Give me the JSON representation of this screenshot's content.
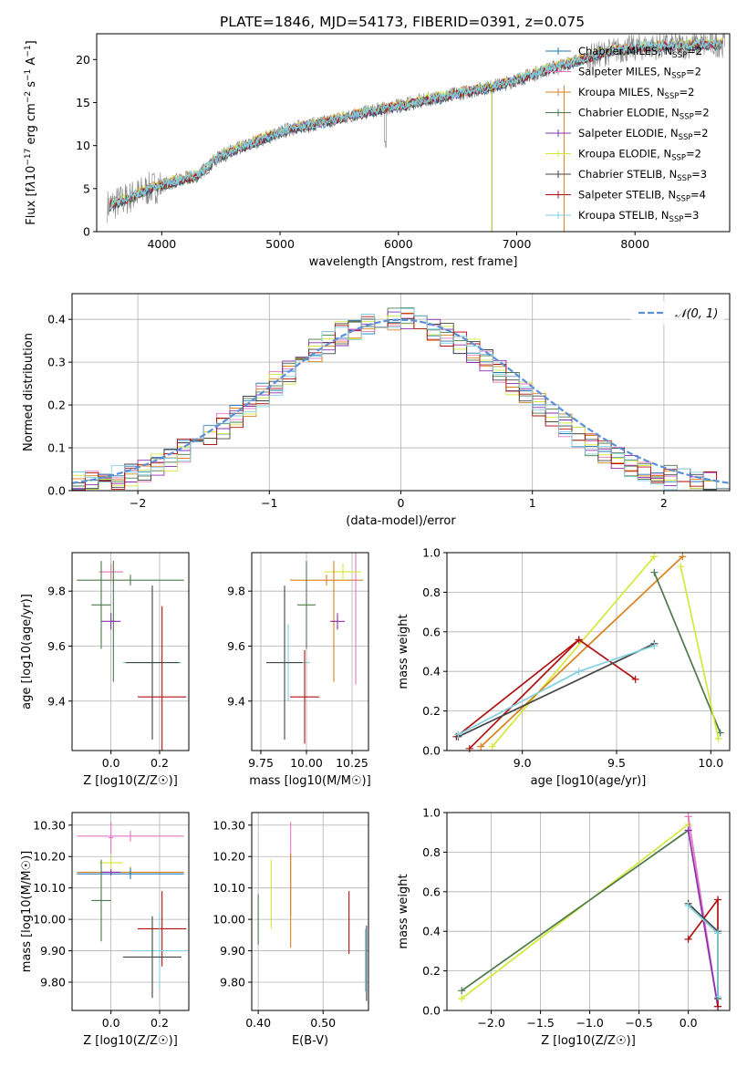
{
  "title": "PLATE=1846, MJD=54173, FIBERID=0391, z=0.075",
  "models": [
    {
      "name": "Chabrier MILES, N<sub>SSP</sub>=2",
      "label": "Chabrier MILES, N",
      "sub": "SSP",
      "tail": "=2",
      "color": "#1f77b4"
    },
    {
      "name": "Salpeter MILES",
      "label": "Salpeter MILES, N",
      "sub": "SSP",
      "tail": "=2",
      "color": "#e377c2"
    },
    {
      "name": "Kroupa MILES",
      "label": "Kroupa MILES, N",
      "sub": "SSP",
      "tail": "=2",
      "color": "#d9821e"
    },
    {
      "name": "Chabrier ELODIE",
      "label": "Chabrier ELODIE, N",
      "sub": "SSP",
      "tail": "=2",
      "color": "#4d7a4d"
    },
    {
      "name": "Salpeter ELODIE",
      "label": "Salpeter ELODIE, N",
      "sub": "SSP",
      "tail": "=2",
      "color": "#8b2fb0"
    },
    {
      "name": "Kroupa ELODIE",
      "label": "Kroupa ELODIE, N",
      "sub": "SSP",
      "tail": "=2",
      "color": "#d4e83a"
    },
    {
      "name": "Chabrier STELIB",
      "label": "Chabrier STELIB, N",
      "sub": "SSP",
      "tail": "=3",
      "color": "#444444"
    },
    {
      "name": "Salpeter STELIB",
      "label": "Salpeter STELIB, N",
      "sub": "SSP",
      "tail": "=4",
      "color": "#b01010"
    },
    {
      "name": "Kroupa STELIB",
      "label": "Kroupa STELIB, N",
      "sub": "SSP",
      "tail": "=3",
      "color": "#80d0e0"
    }
  ],
  "chart_data": [
    {
      "id": "spectrum",
      "type": "line",
      "xlabel": "wavelength [Angstrom, rest frame]",
      "ylabel_parts": [
        "Flux [f",
        "λ",
        "10",
        "−17",
        " erg cm",
        "−2",
        " s",
        "−1",
        " A",
        "−1",
        "]"
      ],
      "xlim": [
        3450,
        8800
      ],
      "ylim": [
        0,
        23
      ],
      "xticks": [
        4000,
        5000,
        6000,
        7000,
        8000
      ],
      "yticks": [
        0,
        5,
        10,
        15,
        20
      ],
      "trend": {
        "x": [
          3550,
          3700,
          3900,
          4100,
          4300,
          4500,
          4800,
          5100,
          5400,
          5700,
          6000,
          6300,
          6600,
          6900,
          7200,
          7500,
          7800,
          8100,
          8400,
          8700
        ],
        "y": [
          3,
          3.8,
          5,
          5.8,
          6.5,
          8.8,
          10.5,
          12,
          12.8,
          13.8,
          14.6,
          15.5,
          16.3,
          17.2,
          18.6,
          19.8,
          21,
          21.5,
          21.6,
          21.8
        ]
      },
      "data_color": "#808080",
      "spike_x": [
        6790,
        7400
      ]
    },
    {
      "id": "residuals",
      "type": "step",
      "xlabel": "(data-model)/error",
      "ylabel": "Normed distribution",
      "xlim": [
        -2.5,
        2.5
      ],
      "ylim": [
        0,
        0.46
      ],
      "xticks": [
        -2,
        -1,
        0,
        1,
        2
      ],
      "yticks": [
        0,
        0.1,
        0.2,
        0.3,
        0.4
      ],
      "legend": "N(0,1)",
      "gauss_color": "#5b8fd9"
    },
    {
      "id": "age_vs_Z",
      "type": "scatter",
      "xlabel": "Z [log10(Z/Z☉)]",
      "ylabel": "age [log10(age/yr)]",
      "xlim": [
        -0.16,
        0.32
      ],
      "ylim": [
        9.22,
        9.94
      ],
      "xticks": [
        0.0,
        0.2
      ],
      "yticks": [
        9.4,
        9.6,
        9.8
      ],
      "points": [
        {
          "m": 3,
          "x": 0.08,
          "y": 9.84,
          "ex": 0.22,
          "ey": 0.0
        },
        {
          "m": 5,
          "x": 0.0,
          "y": 9.87,
          "ex": 0.05,
          "ey": 0.03
        },
        {
          "m": 1,
          "x": 0.0,
          "y": 9.87,
          "ex": 0.05,
          "ey": 0.03
        },
        {
          "m": 3,
          "x": 0.01,
          "y": 9.69,
          "ex": 0.01,
          "ey": 0.22
        },
        {
          "m": 3,
          "x": -0.04,
          "y": 9.75,
          "ex": 0.04,
          "ey": 0.16
        },
        {
          "m": 4,
          "x": 0.0,
          "y": 9.69,
          "ex": 0.04,
          "ey": 0.03
        },
        {
          "m": 8,
          "x": 0.17,
          "y": 9.54,
          "ex": 0.12,
          "ey": 0.28
        },
        {
          "m": 6,
          "x": 0.17,
          "y": 9.54,
          "ex": 0.11,
          "ey": 0.28
        },
        {
          "m": 7,
          "x": 0.21,
          "y": 9.415,
          "ex": 0.1,
          "ey": 0.33
        }
      ]
    },
    {
      "id": "age_vs_mass",
      "type": "scatter",
      "xlabel": "mass [log10(M/M☉)]",
      "ylabel": "",
      "xlim": [
        9.7,
        10.34
      ],
      "ylim": [
        9.22,
        9.94
      ],
      "xticks": [
        9.75,
        10.0,
        10.25
      ],
      "yticks": [
        9.4,
        9.6,
        9.8
      ],
      "points": [
        {
          "m": 2,
          "x": 10.11,
          "y": 9.84,
          "ex": 0.2,
          "ey": 0.0
        },
        {
          "m": 1,
          "x": 10.27,
          "y": 9.84,
          "ex": 0.01,
          "ey": 0.38
        },
        {
          "m": 5,
          "x": 10.2,
          "y": 9.87,
          "ex": 0.1,
          "ey": 0.03
        },
        {
          "m": 2,
          "x": 10.15,
          "y": 9.69,
          "ex": 0.01,
          "ey": 0.22
        },
        {
          "m": 3,
          "x": 10.0,
          "y": 9.75,
          "ex": 0.05,
          "ey": 0.16
        },
        {
          "m": 4,
          "x": 10.17,
          "y": 9.69,
          "ex": 0.04,
          "ey": 0.03
        },
        {
          "m": 8,
          "x": 9.9,
          "y": 9.54,
          "ex": 0.12,
          "ey": 0.14
        },
        {
          "m": 6,
          "x": 9.88,
          "y": 9.54,
          "ex": 0.1,
          "ey": 0.28
        },
        {
          "m": 7,
          "x": 9.99,
          "y": 9.415,
          "ex": 0.08,
          "ey": 0.17
        }
      ]
    },
    {
      "id": "weight_vs_age",
      "type": "line",
      "xlabel": "age [log10(age/yr)]",
      "ylabel": "mass weight",
      "xlim": [
        8.6,
        10.1
      ],
      "ylim": [
        0,
        1
      ],
      "xticks": [
        9.0,
        9.5,
        10.0
      ],
      "yticks": [
        0,
        0.2,
        0.4,
        0.6,
        0.8,
        1.0
      ],
      "series": [
        {
          "m": 5,
          "x": [
            8.84,
            9.7
          ],
          "y": [
            0.02,
            0.98
          ]
        },
        {
          "m": 2,
          "x": [
            8.78,
            9.85
          ],
          "y": [
            0.02,
            0.98
          ]
        },
        {
          "m": 7,
          "x": [
            8.65,
            9.3,
            9.6
          ],
          "y": [
            0.07,
            0.56,
            0.36
          ]
        },
        {
          "m": 7,
          "x": [
            8.72,
            9.3
          ],
          "y": [
            0.01,
            0.56
          ]
        },
        {
          "m": 6,
          "x": [
            8.66,
            9.7
          ],
          "y": [
            0.07,
            0.54
          ]
        },
        {
          "m": 3,
          "x": [
            9.7,
            10.05
          ],
          "y": [
            0.9,
            0.09
          ]
        },
        {
          "m": 5,
          "x": [
            9.84,
            10.04
          ],
          "y": [
            0.93,
            0.06
          ]
        },
        {
          "m": 8,
          "x": [
            8.66,
            9.3,
            9.7
          ],
          "y": [
            0.08,
            0.4,
            0.53
          ]
        }
      ]
    },
    {
      "id": "mass_vs_Z",
      "type": "scatter",
      "xlabel": "Z [log10(Z/Z☉)]",
      "ylabel": "mass [log10(M/M☉)]",
      "xlim": [
        -0.16,
        0.32
      ],
      "ylim": [
        9.71,
        10.34
      ],
      "xticks": [
        0.0,
        0.2
      ],
      "yticks": [
        9.8,
        9.9,
        10.0,
        10.1,
        10.2,
        10.3
      ],
      "points": [
        {
          "m": 1,
          "x": 0.08,
          "y": 10.265,
          "ex": 0.22,
          "ey": 0.0
        },
        {
          "m": 1,
          "x": 0.0,
          "y": 10.26,
          "ex": 0.01,
          "ey": 0.05
        },
        {
          "m": 2,
          "x": 0.08,
          "y": 10.15,
          "ex": 0.22,
          "ey": 0.0
        },
        {
          "m": 0,
          "x": 0.08,
          "y": 10.145,
          "ex": 0.22,
          "ey": 0.0
        },
        {
          "m": 5,
          "x": 0.0,
          "y": 10.18,
          "ex": 0.05,
          "ey": 0.02
        },
        {
          "m": 3,
          "x": -0.04,
          "y": 10.06,
          "ex": 0.04,
          "ey": 0.13
        },
        {
          "m": 4,
          "x": 0.0,
          "y": 10.15,
          "ex": 0.04,
          "ey": 0.01
        },
        {
          "m": 7,
          "x": 0.21,
          "y": 9.97,
          "ex": 0.1,
          "ey": 0.12
        },
        {
          "m": 8,
          "x": 0.2,
          "y": 9.9,
          "ex": 0.11,
          "ey": 0.12
        },
        {
          "m": 6,
          "x": 0.17,
          "y": 9.88,
          "ex": 0.12,
          "ey": 0.13
        }
      ]
    },
    {
      "id": "mass_vs_EBV",
      "type": "scatter",
      "xlabel": "E(B-V)",
      "ylabel": "",
      "xlim": [
        0.39,
        0.57
      ],
      "ylim": [
        9.71,
        10.34
      ],
      "xticks": [
        0.4,
        0.5
      ],
      "yticks": [
        9.8,
        9.9,
        10.0,
        10.1,
        10.2,
        10.3
      ],
      "points": [
        {
          "m": 3,
          "x": 0.4,
          "y": 10.0,
          "ex": 0,
          "ey": 0.08
        },
        {
          "m": 5,
          "x": 0.42,
          "y": 10.08,
          "ex": 0,
          "ey": 0.11
        },
        {
          "m": 1,
          "x": 0.45,
          "y": 10.16,
          "ex": 0,
          "ey": 0.15
        },
        {
          "m": 2,
          "x": 0.45,
          "y": 10.06,
          "ex": 0,
          "ey": 0.15
        },
        {
          "m": 7,
          "x": 0.54,
          "y": 9.99,
          "ex": 0,
          "ey": 0.1
        },
        {
          "m": 8,
          "x": 0.565,
          "y": 9.87,
          "ex": 0,
          "ey": 0.1
        },
        {
          "m": 6,
          "x": 0.567,
          "y": 9.86,
          "ex": 0,
          "ey": 0.12
        }
      ]
    },
    {
      "id": "weight_vs_Z",
      "type": "line",
      "xlabel": "Z [log10(Z/Z☉)]",
      "ylabel": "mass weight",
      "xlim": [
        -2.45,
        0.42
      ],
      "ylim": [
        0,
        1
      ],
      "xticks": [
        -2.0,
        -1.5,
        -1.0,
        -0.5,
        0.0
      ],
      "yticks": [
        0,
        0.2,
        0.4,
        0.6,
        0.8,
        1.0
      ],
      "series": [
        {
          "m": 5,
          "x": [
            -2.3,
            0.0
          ],
          "y": [
            0.06,
            0.94
          ]
        },
        {
          "m": 3,
          "x": [
            -2.3,
            0.0
          ],
          "y": [
            0.1,
            0.91
          ]
        },
        {
          "m": 1,
          "x": [
            0.0,
            0.3
          ],
          "y": [
            0.98,
            0.02
          ]
        },
        {
          "m": 4,
          "x": [
            0.0,
            0.3
          ],
          "y": [
            0.91,
            0.02
          ]
        },
        {
          "m": 7,
          "x": [
            0.0,
            0.3,
            0.3
          ],
          "y": [
            0.36,
            0.56,
            0.02
          ]
        },
        {
          "m": 6,
          "x": [
            0.0,
            0.3,
            0.3
          ],
          "y": [
            0.54,
            0.4,
            0.06
          ]
        },
        {
          "m": 8,
          "x": [
            0.0,
            0.3,
            0.3
          ],
          "y": [
            0.53,
            0.39,
            0.07
          ]
        }
      ]
    }
  ]
}
